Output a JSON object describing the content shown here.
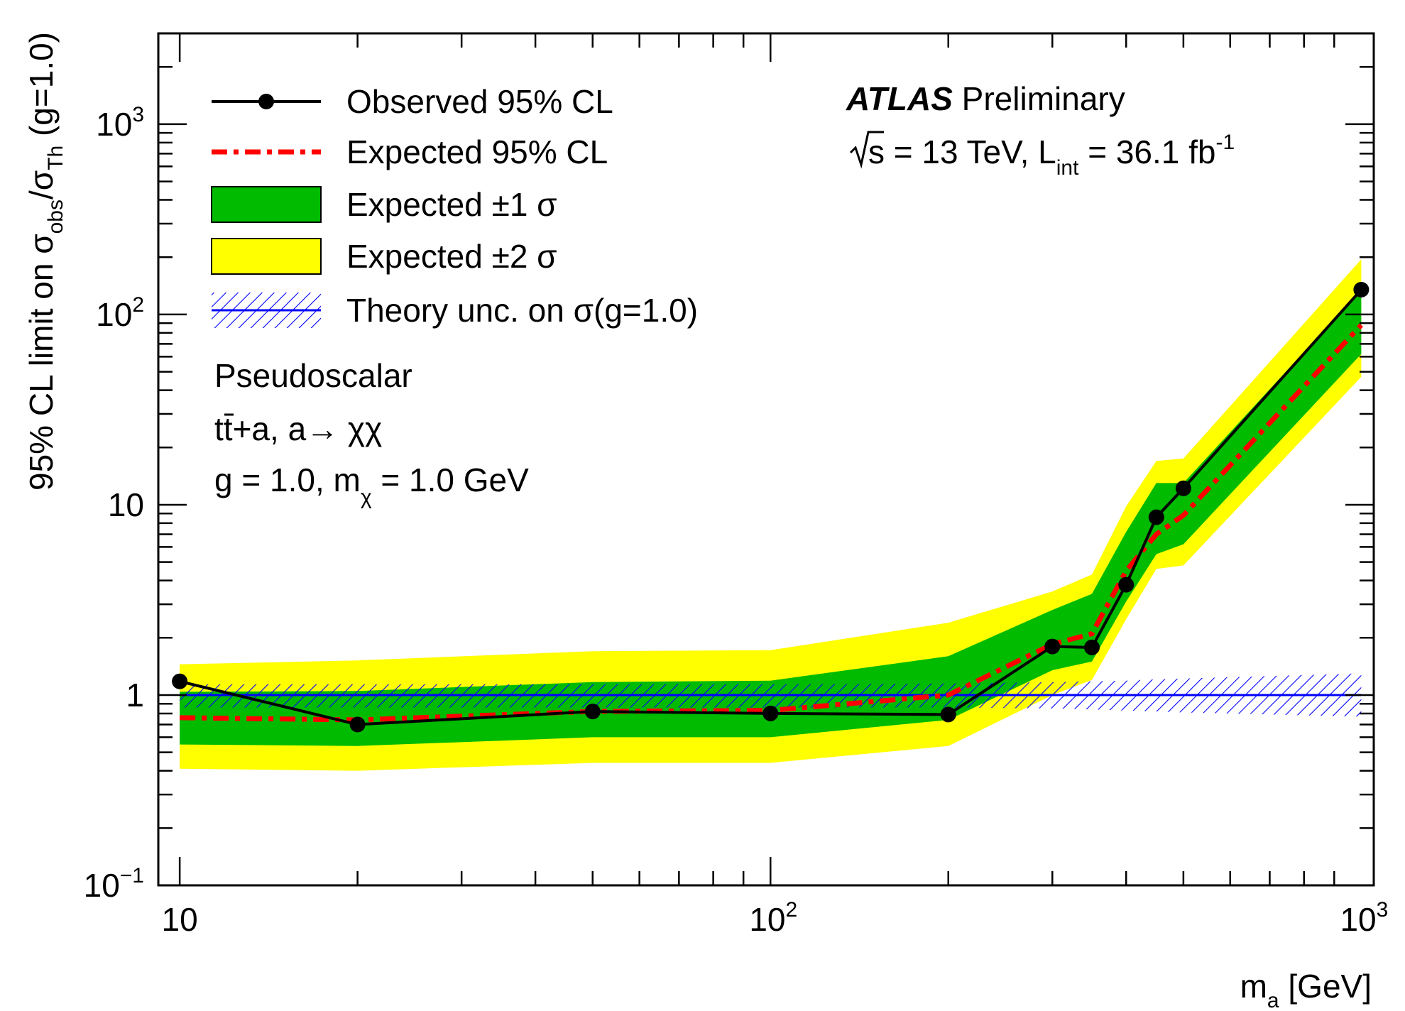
{
  "chart_data": {
    "type": "line",
    "title": "",
    "xlabel": {
      "main": "m",
      "sub": "a",
      "unit": " [GeV]"
    },
    "ylabel": {
      "pre": "95% CL limit on σ",
      "sub1": "obs",
      "mid": "/σ",
      "sub2": "Th",
      "post": " (g=1.0)"
    },
    "x_scale": "log",
    "y_scale": "log",
    "xlim": [
      9.2,
      1050
    ],
    "ylim": [
      0.1,
      3000
    ],
    "x_ticks": [
      {
        "value": 10,
        "base": "10",
        "exp": ""
      },
      {
        "value": 100,
        "base": "10",
        "exp": "2"
      },
      {
        "value": 1000,
        "base": "10",
        "exp": "3"
      }
    ],
    "y_ticks": [
      {
        "value": 0.1,
        "base": "10",
        "exp": "−1"
      },
      {
        "value": 1,
        "base": "1",
        "exp": ""
      },
      {
        "value": 10,
        "base": "10",
        "exp": ""
      },
      {
        "value": 100,
        "base": "10",
        "exp": "2"
      },
      {
        "value": 1000,
        "base": "10",
        "exp": "3"
      }
    ],
    "x": [
      10,
      20,
      50,
      100,
      200,
      300,
      350,
      400,
      450,
      500,
      1000
    ],
    "series": [
      {
        "name": "Observed 95% CL",
        "color": "#000000",
        "style": "line-markers",
        "values": [
          1.18,
          0.7,
          0.82,
          0.8,
          0.79,
          1.8,
          1.78,
          3.8,
          8.6,
          12.2,
          135
        ]
      },
      {
        "name": "Expected 95% CL",
        "color": "#ff0000",
        "style": "dash-dot",
        "values": [
          0.76,
          0.74,
          0.82,
          0.83,
          1.0,
          1.85,
          2.1,
          4.5,
          7.0,
          8.8,
          88
        ]
      },
      {
        "name": "Expected ±1 σ",
        "color": "#00bb00",
        "style": "band",
        "lower": [
          0.55,
          0.54,
          0.6,
          0.6,
          0.74,
          1.35,
          1.5,
          3.1,
          5.5,
          6.2,
          62
        ],
        "upper": [
          1.04,
          1.05,
          1.17,
          1.19,
          1.6,
          2.8,
          3.4,
          7.2,
          13.0,
          13.0,
          135
        ]
      },
      {
        "name": "Expected ±2 σ",
        "color": "#ffff00",
        "style": "band",
        "lower": [
          0.41,
          0.4,
          0.44,
          0.44,
          0.54,
          1.0,
          1.2,
          2.5,
          4.6,
          4.8,
          47
        ],
        "upper": [
          1.45,
          1.52,
          1.7,
          1.72,
          2.4,
          3.5,
          4.3,
          9.8,
          17.0,
          17.5,
          195
        ]
      },
      {
        "name": "Theory unc. on σ(g=1.0)",
        "color": "#0000ff",
        "style": "hatched",
        "values": [
          1.0,
          1.0,
          1.0,
          1.0,
          1.0,
          1.0,
          1.0,
          1.0,
          1.0,
          1.0,
          1.0
        ],
        "lower": [
          0.86,
          0.86,
          0.86,
          0.86,
          0.86,
          0.85,
          0.84,
          0.83,
          0.82,
          0.81,
          0.77
        ],
        "upper": [
          1.14,
          1.14,
          1.14,
          1.14,
          1.15,
          1.17,
          1.18,
          1.19,
          1.21,
          1.22,
          1.3
        ]
      }
    ],
    "legend": {
      "placement": "top-left"
    },
    "grid": false
  },
  "info": {
    "experiment": "ATLAS",
    "status": " Preliminary",
    "energy_prefix": "s",
    "energy_text": " = 13 TeV, L",
    "lumi_sub": "int",
    "lumi_text": " = 36.1 fb",
    "lumi_sup": "-1"
  },
  "annotations": {
    "line1": "Pseudoscalar",
    "line2_t": "t",
    "line2_tbar": "t",
    "line2_rest": "+a, a→ χχ",
    "line3_main": "g = 1.0,  m",
    "line3_sub": "χ",
    "line3_post": " = 1.0 GeV"
  }
}
